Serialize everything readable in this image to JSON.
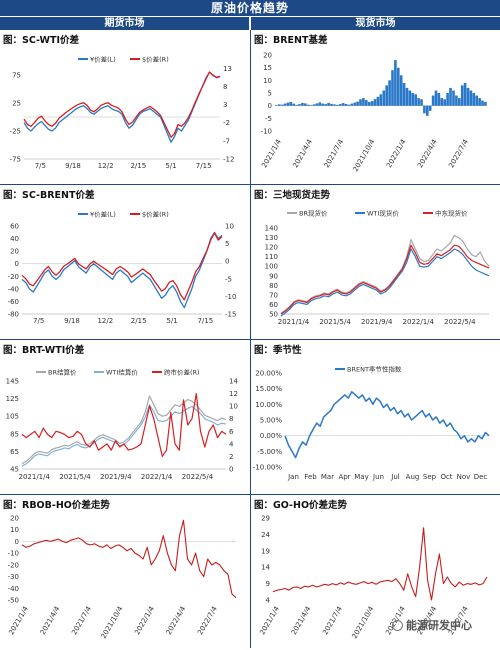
{
  "banner": "原油价格趋势",
  "headers": {
    "left": "期货市场",
    "right": "现货市场"
  },
  "watermark": "能源研发中心",
  "chart_data": [
    {
      "id": "sc-wti",
      "type": "line",
      "title": "图：SC-WTI价差",
      "x_ticks": [
        "7/5",
        "9/18",
        "12/2",
        "2/15",
        "5/1",
        "7/15"
      ],
      "y_left": {
        "ticks": [
          75,
          25,
          -25,
          -75
        ],
        "range": [
          -75,
          100
        ]
      },
      "y_right": {
        "ticks": [
          13,
          8,
          3,
          -2,
          -7,
          -12
        ],
        "range": [
          -12,
          15
        ]
      },
      "legend": [
        "¥价差(L)",
        "$价差(R)"
      ],
      "series": [
        {
          "name": "¥价差(L)",
          "color": "#2a78c9",
          "axis": "left",
          "values": [
            -10,
            -20,
            -25,
            -18,
            -12,
            -8,
            -15,
            -22,
            -25,
            -20,
            -10,
            -5,
            0,
            5,
            10,
            15,
            18,
            20,
            15,
            8,
            5,
            10,
            15,
            18,
            20,
            15,
            12,
            10,
            5,
            -10,
            -20,
            -15,
            -5,
            5,
            10,
            12,
            15,
            10,
            5,
            0,
            -15,
            -30,
            -45,
            -35,
            -20,
            -25,
            -15,
            -5,
            10,
            25,
            40,
            55,
            70,
            80,
            75,
            70,
            72
          ]
        },
        {
          "name": "$价差(R)",
          "color": "#d62020",
          "axis": "right",
          "values": [
            -1,
            -2.5,
            -3,
            -2,
            -0.8,
            -0.2,
            -1.5,
            -2.5,
            -3,
            -2.2,
            -0.8,
            0,
            0.8,
            1.5,
            2.2,
            2.8,
            3.2,
            3.5,
            2.8,
            1.5,
            1,
            1.8,
            2.8,
            3.2,
            3.5,
            2.8,
            2.4,
            2,
            1,
            -1,
            -2.5,
            -1.8,
            -0.5,
            0.8,
            1.5,
            2,
            2.5,
            1.8,
            1,
            0,
            -2,
            -4,
            -6,
            -5,
            -2.5,
            -3,
            -2,
            -0.5,
            1.5,
            3.8,
            6,
            8,
            10,
            12,
            11,
            10.5,
            10.8
          ]
        }
      ]
    },
    {
      "id": "brent-basis",
      "type": "bar",
      "title": "图：BRENT基差",
      "x_ticks": [
        "2021/1/4",
        "2021/4/4",
        "2021/7/4",
        "2021/10/4",
        "2022/1/4",
        "2022/4/4",
        "2022/7/4"
      ],
      "y_ticks": [
        20,
        15,
        10,
        5,
        0,
        -5,
        -10
      ],
      "y_range": [
        -10,
        20
      ],
      "color": "#2a78c9",
      "values": [
        0.2,
        0.5,
        0.4,
        0.8,
        1.2,
        1.5,
        0.8,
        0.3,
        0.6,
        1.1,
        0.9,
        0.4,
        0.2,
        0.5,
        0.9,
        1.3,
        0.8,
        0.6,
        1.1,
        0.7,
        0.5,
        0.3,
        0.6,
        1,
        0.7,
        0.4,
        0.8,
        1.2,
        1.6,
        2.5,
        3,
        2.2,
        1.5,
        1.8,
        2.6,
        3.5,
        4.5,
        6,
        8,
        10,
        14,
        18,
        15,
        12,
        9,
        7,
        6,
        5,
        4.5,
        3,
        2.5,
        -3,
        -4,
        -2,
        4,
        6,
        5,
        3,
        2.5,
        5,
        7,
        6,
        4,
        3,
        8,
        9,
        7,
        6,
        5,
        4,
        3,
        2,
        1.5
      ]
    },
    {
      "id": "sc-brent",
      "type": "line",
      "title": "图：SC-BRENT价差",
      "x_ticks": [
        "7/5",
        "9/18",
        "12/2",
        "2/15",
        "5/1",
        "7/15"
      ],
      "y_left": {
        "ticks": [
          60,
          40,
          20,
          0,
          -20,
          -40,
          -60,
          -80
        ],
        "range": [
          -80,
          60
        ]
      },
      "y_right": {
        "ticks": [
          10,
          5,
          0,
          -5,
          -10,
          -15
        ],
        "range": [
          -15,
          10
        ]
      },
      "legend": [
        "¥价差(L)",
        "$价差(R)"
      ],
      "series": [
        {
          "name": "¥价差(L)",
          "color": "#2a78c9",
          "axis": "left",
          "values": [
            -25,
            -30,
            -40,
            -45,
            -35,
            -25,
            -15,
            -10,
            -20,
            -25,
            -20,
            -10,
            -5,
            0,
            5,
            -5,
            -10,
            -15,
            -5,
            0,
            -5,
            -10,
            -15,
            -20,
            -25,
            -15,
            -10,
            -15,
            -20,
            -30,
            -25,
            -20,
            -15,
            -20,
            -25,
            -35,
            -45,
            -55,
            -50,
            -40,
            -35,
            -45,
            -60,
            -70,
            -55,
            -40,
            -20,
            -10,
            5,
            20,
            40,
            50,
            40,
            45
          ]
        },
        {
          "name": "$价差(R)",
          "color": "#d62020",
          "axis": "right",
          "values": [
            -4,
            -5,
            -6.5,
            -7,
            -5.5,
            -4,
            -2.5,
            -1.5,
            -3,
            -4,
            -3,
            -1.5,
            -0.8,
            0,
            0.8,
            -0.8,
            -1.5,
            -2.2,
            -0.8,
            0,
            -0.8,
            -1.5,
            -2.2,
            -3,
            -3.8,
            -2.2,
            -1.5,
            -2.2,
            -3,
            -4.5,
            -3.8,
            -3,
            -2.2,
            -3,
            -3.8,
            -5.5,
            -7,
            -8.5,
            -7.8,
            -6,
            -5.5,
            -7,
            -9.5,
            -11,
            -8.5,
            -6,
            -3,
            -1.5,
            0.8,
            3,
            6,
            8,
            6,
            7
          ]
        }
      ]
    },
    {
      "id": "three-spot",
      "type": "line",
      "title": "图：三地现货走势",
      "x_ticks": [
        "2021/1/4",
        "2021/5/4",
        "2021/9/4",
        "2022/1/4",
        "2022/5/4"
      ],
      "y_ticks": [
        140,
        130,
        120,
        110,
        100,
        90,
        80,
        70,
        60,
        50
      ],
      "y_range": [
        50,
        140
      ],
      "legend": [
        "BR现货价",
        "WTI现货价",
        "中东现货价"
      ],
      "series": [
        {
          "name": "BR现货价",
          "color": "#a8a8a8",
          "values": [
            51,
            54,
            58,
            63,
            65,
            64,
            63,
            67,
            69,
            70,
            72,
            71,
            74,
            76,
            73,
            72,
            74,
            78,
            82,
            84,
            82,
            80,
            78,
            74,
            76,
            80,
            86,
            92,
            98,
            110,
            128,
            118,
            108,
            105,
            106,
            112,
            118,
            116,
            120,
            124,
            132,
            130,
            126,
            118,
            112,
            110,
            115,
            105,
            100
          ]
        },
        {
          "name": "WTI现货价",
          "color": "#2a78c9",
          "values": [
            48,
            51,
            55,
            60,
            62,
            61,
            60,
            64,
            66,
            67,
            69,
            68,
            71,
            73,
            70,
            69,
            71,
            75,
            79,
            81,
            79,
            77,
            75,
            71,
            73,
            77,
            83,
            89,
            95,
            104,
            118,
            110,
            100,
            99,
            100,
            105,
            110,
            108,
            111,
            114,
            118,
            116,
            112,
            106,
            100,
            96,
            94,
            92,
            90
          ]
        },
        {
          "name": "中东现货价",
          "color": "#d62020",
          "values": [
            50,
            53,
            57,
            62,
            64,
            63,
            62,
            66,
            68,
            69,
            71,
            70,
            73,
            75,
            72,
            71,
            73,
            77,
            81,
            83,
            81,
            79,
            77,
            73,
            75,
            79,
            85,
            91,
            97,
            108,
            122,
            114,
            104,
            102,
            103,
            108,
            113,
            111,
            114,
            117,
            122,
            121,
            116,
            110,
            106,
            104,
            102,
            100,
            98
          ]
        }
      ]
    },
    {
      "id": "brt-wti",
      "type": "line",
      "title": "图：BRT-WTI价差",
      "x_ticks": [
        "2021/1/4",
        "2021/5/4",
        "2021/9/4",
        "2022/1/4",
        "2022/5/4"
      ],
      "y_left": {
        "ticks": [
          145,
          125,
          105,
          85,
          65,
          45
        ],
        "range": [
          45,
          145
        ]
      },
      "y_right": {
        "ticks": [
          14,
          12,
          10,
          8,
          6,
          4,
          2,
          0
        ],
        "range": [
          0,
          14
        ]
      },
      "legend": [
        "BR结算价",
        "WTI结算价",
        "跨市价差(R)"
      ],
      "series": [
        {
          "name": "BR结算价",
          "color": "#a8a8a8",
          "axis": "left",
          "values": [
            51,
            54,
            58,
            63,
            65,
            64,
            63,
            67,
            69,
            70,
            72,
            71,
            74,
            76,
            73,
            72,
            74,
            78,
            82,
            84,
            82,
            80,
            78,
            74,
            76,
            80,
            86,
            92,
            98,
            110,
            128,
            118,
            108,
            105,
            106,
            112,
            118,
            116,
            120,
            124,
            122,
            118,
            112,
            106,
            104,
            102,
            100,
            103,
            101
          ]
        },
        {
          "name": "WTI结算价",
          "color": "#7fb2d8",
          "axis": "left",
          "values": [
            48,
            51,
            55,
            60,
            62,
            61,
            60,
            64,
            66,
            67,
            69,
            68,
            71,
            73,
            70,
            69,
            71,
            75,
            79,
            81,
            79,
            77,
            75,
            71,
            73,
            77,
            83,
            89,
            95,
            104,
            118,
            110,
            100,
            99,
            100,
            105,
            110,
            108,
            111,
            114,
            116,
            112,
            108,
            102,
            100,
            98,
            95,
            97,
            96
          ]
        },
        {
          "name": "跨市价差(R)",
          "color": "#d62020",
          "axis": "right",
          "values": [
            5.5,
            5,
            5.5,
            6,
            5,
            6.5,
            5.5,
            5,
            6,
            5.8,
            5.5,
            5,
            5.2,
            6,
            5.5,
            4,
            3.5,
            4.5,
            3,
            3.5,
            4,
            3,
            4.5,
            3.5,
            4,
            3,
            3.2,
            3.5,
            4,
            7,
            10,
            8,
            5,
            2,
            3,
            9,
            4,
            3,
            11,
            7,
            8,
            12,
            6,
            3.5,
            6,
            7,
            5,
            6,
            5.5
          ]
        }
      ]
    },
    {
      "id": "seasonal",
      "type": "line",
      "title": "图：季节性",
      "x_ticks": [
        "Jan",
        "Feb",
        "Mar",
        "Apr",
        "May",
        "Jun",
        "Jul",
        "Aug",
        "Sep",
        "Oct",
        "Nov",
        "Dec"
      ],
      "y_ticks": [
        "20.00%",
        "15.00%",
        "10.00%",
        "5.00%",
        "0.00%",
        "-5.00%",
        "-10.00%"
      ],
      "y_range": [
        -10,
        20
      ],
      "legend": [
        "BRENT季节性指数"
      ],
      "series": [
        {
          "name": "BRENT季节性指数",
          "color": "#2a78c9",
          "values": [
            0,
            -3,
            -5,
            -7,
            -4,
            -2,
            -3,
            0,
            2,
            4,
            3,
            6,
            7,
            8,
            10,
            11,
            12,
            13,
            12,
            14,
            13,
            12,
            13,
            11,
            12,
            10,
            12,
            11,
            9,
            10,
            8,
            9,
            7,
            8,
            6,
            7,
            5,
            6,
            7,
            8,
            6,
            7,
            5,
            6,
            4,
            5,
            3,
            4,
            2,
            1,
            -1,
            0,
            -2,
            -1,
            -2,
            0,
            -1,
            1,
            0
          ]
        }
      ]
    },
    {
      "id": "rbob-ho",
      "type": "line",
      "title": "图：RBOB-HO价差走势",
      "x_ticks": [
        "2021/1/4",
        "2021/4/4",
        "2021/7/4",
        "2021/10/4",
        "2022/1/4",
        "2022/4/4",
        "2022/7/4"
      ],
      "y_ticks": [
        20,
        10,
        0,
        -10,
        -20,
        -30,
        -40,
        -50
      ],
      "y_range": [
        -50,
        20
      ],
      "series": [
        {
          "name": "RBOB-HO",
          "color": "#c81c1c",
          "values": [
            -3,
            -5,
            -4,
            -2,
            -1,
            0,
            1,
            0,
            1,
            2,
            0,
            -1,
            1,
            2,
            3,
            1,
            -2,
            -3,
            -2,
            -4,
            -5,
            -3,
            -6,
            -4,
            -3,
            -5,
            -8,
            -6,
            -10,
            -12,
            -15,
            -5,
            -20,
            -15,
            -8,
            5,
            -10,
            -20,
            -25,
            5,
            18,
            -15,
            -20,
            -10,
            -25,
            -30,
            -15,
            -20,
            -18,
            -20,
            -25,
            -28,
            -45,
            -48
          ]
        }
      ]
    },
    {
      "id": "go-ho",
      "type": "line",
      "title": "图：GO-HO价差走势",
      "x_ticks": [
        "2021/1/4",
        "2021/4/4",
        "2021/7/4",
        "2021/10/4",
        "2022/1/4",
        "2022/4/4",
        "2022/7/4"
      ],
      "y_ticks": [
        29,
        24,
        19,
        14,
        9,
        4
      ],
      "y_range": [
        4,
        29
      ],
      "series": [
        {
          "name": "GO-HO",
          "color": "#c81c1c",
          "values": [
            6.5,
            7,
            7.2,
            7.5,
            7,
            7.8,
            8,
            7.5,
            8.2,
            8,
            8.5,
            8,
            8.3,
            8.8,
            8.5,
            9,
            8.6,
            9.2,
            8.8,
            9.5,
            9,
            8.8,
            9.2,
            9.6,
            9,
            9.4,
            8.8,
            9.5,
            9.8,
            10,
            9.6,
            10.5,
            9,
            7,
            12,
            8,
            5,
            14,
            26,
            10,
            4,
            12,
            18,
            9,
            11,
            9,
            8,
            9.5,
            8.5,
            9,
            8.8,
            9.2,
            8.6,
            9,
            11
          ]
        }
      ]
    }
  ]
}
